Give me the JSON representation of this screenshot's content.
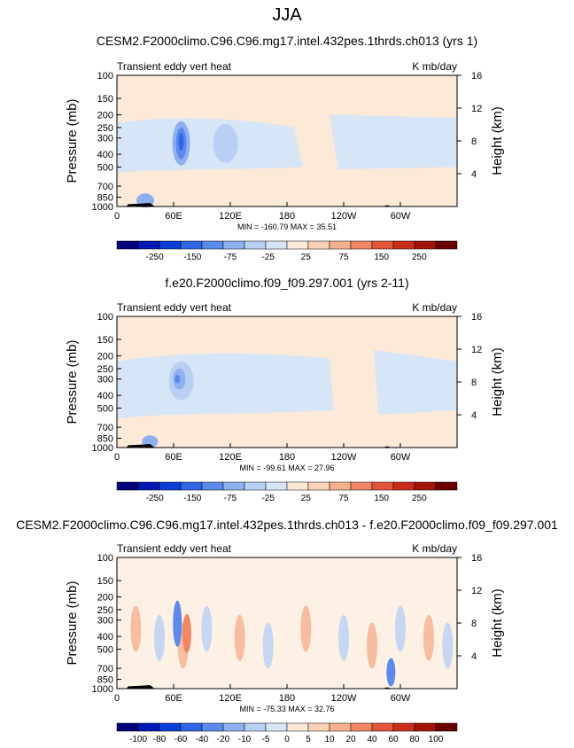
{
  "main_title": "JJA",
  "chart_data": [
    {
      "type": "heatmap",
      "title": "CESM2.F2000climo.C96.C96.mg17.intel.432pes.1thrds.ch013 (yrs 1)",
      "left_label": "Transient eddy vert heat",
      "units_label": "K mb/day",
      "ylabel": "Pressure (mb)",
      "ylabel_right": "Height (km)",
      "pressure_ticks": [
        "100",
        "150",
        "200",
        "250",
        "300",
        "400",
        "500",
        "700",
        "850",
        "1000"
      ],
      "height_ticks": [
        "16",
        "12",
        "8",
        "4"
      ],
      "lon_ticks": [
        "0",
        "60E",
        "120E",
        "180",
        "120W",
        "60W"
      ],
      "stats": "MIN = -160.79  MAX =  35.51",
      "colorbar_labels": [
        "-250",
        "-150",
        "-75",
        "-25",
        "25",
        "75",
        "150",
        "250"
      ],
      "colorbar_colors": [
        "#00007a",
        "#0018b4",
        "#0a3ed6",
        "#2e66e6",
        "#5b8aec",
        "#8fb0f0",
        "#b9d0f4",
        "#d6e6f6",
        "#fde9d8",
        "#fbd2b6",
        "#f6b08e",
        "#ef8664",
        "#e2563b",
        "#c92e1a",
        "#a11406",
        "#6b0000"
      ],
      "features": [
        {
          "lon": 60,
          "p": 330,
          "value": -160,
          "spread_lon": 4,
          "spread_p": 75
        },
        {
          "lon": 40,
          "p": 900,
          "value": -60,
          "spread_lon": 6,
          "spread_p": 60
        }
      ]
    },
    {
      "type": "heatmap",
      "title": "f.e20.F2000climo.f09_f09.297.001 (yrs 2-11)",
      "left_label": "Transient eddy vert heat",
      "units_label": "K mb/day",
      "ylabel": "Pressure (mb)",
      "ylabel_right": "Height (km)",
      "pressure_ticks": [
        "100",
        "150",
        "200",
        "250",
        "300",
        "400",
        "500",
        "700",
        "850",
        "1000"
      ],
      "height_ticks": [
        "16",
        "12",
        "8",
        "4"
      ],
      "lon_ticks": [
        "0",
        "60E",
        "120E",
        "180",
        "120W",
        "60W"
      ],
      "stats": "MIN = -99.61  MAX =  27.96",
      "colorbar_labels": [
        "-250",
        "-150",
        "-75",
        "-25",
        "25",
        "75",
        "150",
        "250"
      ],
      "colorbar_colors": [
        "#00007a",
        "#0018b4",
        "#0a3ed6",
        "#2e66e6",
        "#5b8aec",
        "#8fb0f0",
        "#b9d0f4",
        "#d6e6f6",
        "#fde9d8",
        "#fbd2b6",
        "#f6b08e",
        "#ef8664",
        "#e2563b",
        "#c92e1a",
        "#a11406",
        "#6b0000"
      ],
      "features": [
        {
          "lon": 62,
          "p": 300,
          "value": -100,
          "spread_lon": 6,
          "spread_p": 70
        },
        {
          "lon": 40,
          "p": 900,
          "value": -50,
          "spread_lon": 6,
          "spread_p": 50
        }
      ]
    },
    {
      "type": "heatmap",
      "title": "CESM2.F2000climo.C96.C96.mg17.intel.432pes.1thrds.ch013 - f.e20.F2000climo.f09_f09.297.001",
      "left_label": "Transient eddy vert heat",
      "units_label": "K mb/day",
      "ylabel": "Pressure (mb)",
      "ylabel_right": "Height (km)",
      "pressure_ticks": [
        "100",
        "150",
        "200",
        "250",
        "300",
        "400",
        "500",
        "700",
        "850",
        "1000"
      ],
      "height_ticks": [
        "16",
        "12",
        "8",
        "4"
      ],
      "lon_ticks": [
        "0",
        "60E",
        "120E",
        "180",
        "120W",
        "60W"
      ],
      "stats": "MIN = -75.33  MAX =  32.76",
      "colorbar_labels": [
        "-100",
        "-80",
        "-60",
        "-40",
        "-20",
        "-10",
        "-5",
        "0",
        "5",
        "10",
        "20",
        "40",
        "60",
        "80",
        "100"
      ],
      "colorbar_colors": [
        "#00007a",
        "#0018b4",
        "#0a3ed6",
        "#2e66e6",
        "#5b8aec",
        "#8fb0f0",
        "#b9d0f4",
        "#d6e6f6",
        "#fde9d8",
        "#fbd2b6",
        "#f6b08e",
        "#ef8664",
        "#e2563b",
        "#c92e1a",
        "#a11406",
        "#6b0000"
      ],
      "features": [
        {
          "lon": 62,
          "p": 330,
          "value": -75,
          "spread_lon": 4,
          "spread_p": 80
        },
        {
          "lon": 75,
          "p": 400,
          "value": 33,
          "spread_lon": 6,
          "spread_p": 100
        }
      ]
    }
  ]
}
